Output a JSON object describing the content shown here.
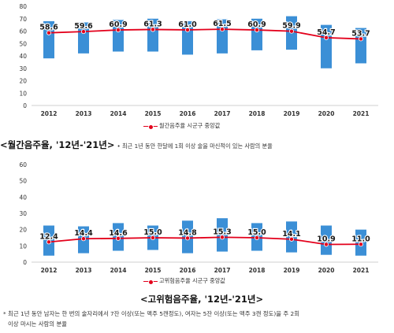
{
  "chart_data": [
    {
      "type": "line",
      "years": [
        "2012",
        "2013",
        "2014",
        "2015",
        "2016",
        "2017",
        "2018",
        "2019",
        "2020",
        "2021"
      ],
      "y_ticks": [
        "0",
        "10",
        "20",
        "30",
        "40",
        "50",
        "60",
        "70",
        "80"
      ],
      "ylim": [
        0,
        80
      ],
      "series": [
        {
          "name": "월간음주율 시군구 중앙값",
          "color": "#e3001b",
          "values": [
            58.6,
            59.6,
            60.9,
            61.3,
            61.0,
            61.5,
            60.9,
            59.9,
            54.7,
            53.7
          ],
          "labels": [
            "58.6",
            "59.6",
            "60.9",
            "61.3",
            "61.0",
            "61.5",
            "60.9",
            "59.9",
            "54.7",
            "53.7"
          ]
        }
      ],
      "range_bars": {
        "color": "#3b8fd6",
        "low": [
          38,
          42,
          43.5,
          43.5,
          41,
          42,
          44.5,
          45,
          30,
          34
        ],
        "high": [
          68,
          67,
          69,
          70,
          68,
          69.5,
          70,
          72,
          65,
          62.5
        ]
      },
      "caption_title": "<월간음주율, '12년-'21년>",
      "caption_note": "• 최근 1년 동안 한달에 1회 이상 술을 마신적이 있는 사람의 분율"
    },
    {
      "type": "line",
      "years": [
        "2012",
        "2013",
        "2014",
        "2015",
        "2016",
        "2017",
        "2018",
        "2019",
        "2020",
        "2021"
      ],
      "y_ticks": [
        "0",
        "10",
        "20",
        "30",
        "40",
        "50",
        "60"
      ],
      "ylim": [
        0,
        60
      ],
      "series": [
        {
          "name": "고위험음주율 시군구 중앙값",
          "color": "#e3001b",
          "values": [
            12.4,
            14.4,
            14.6,
            15.0,
            14.8,
            15.3,
            15.0,
            14.1,
            10.9,
            11.0
          ],
          "labels": [
            "12.4",
            "14.4",
            "14.6",
            "15.0",
            "14.8",
            "15.3",
            "15.0",
            "14.1",
            "10.9",
            "11.0"
          ]
        }
      ],
      "range_bars": {
        "color": "#3b8fd6",
        "low": [
          4,
          5.5,
          7,
          7.5,
          5.5,
          6.5,
          7,
          6,
          4.5,
          4
        ],
        "high": [
          22.5,
          22,
          24,
          22.5,
          25.5,
          27,
          24,
          25,
          22.5,
          20
        ]
      },
      "caption_title": "<고위험음주율, '12년-'21년>"
    }
  ],
  "footnote_line1": "* 최근 1년 동안 남자는 한 번의 술자리에서 7잔 이상(또는 맥주 5캔정도), 여자는 5잔 이상(또는 맥주 3캔 정도)을 주 2회",
  "footnote_line2": "이상 마시는 사람의 분율"
}
